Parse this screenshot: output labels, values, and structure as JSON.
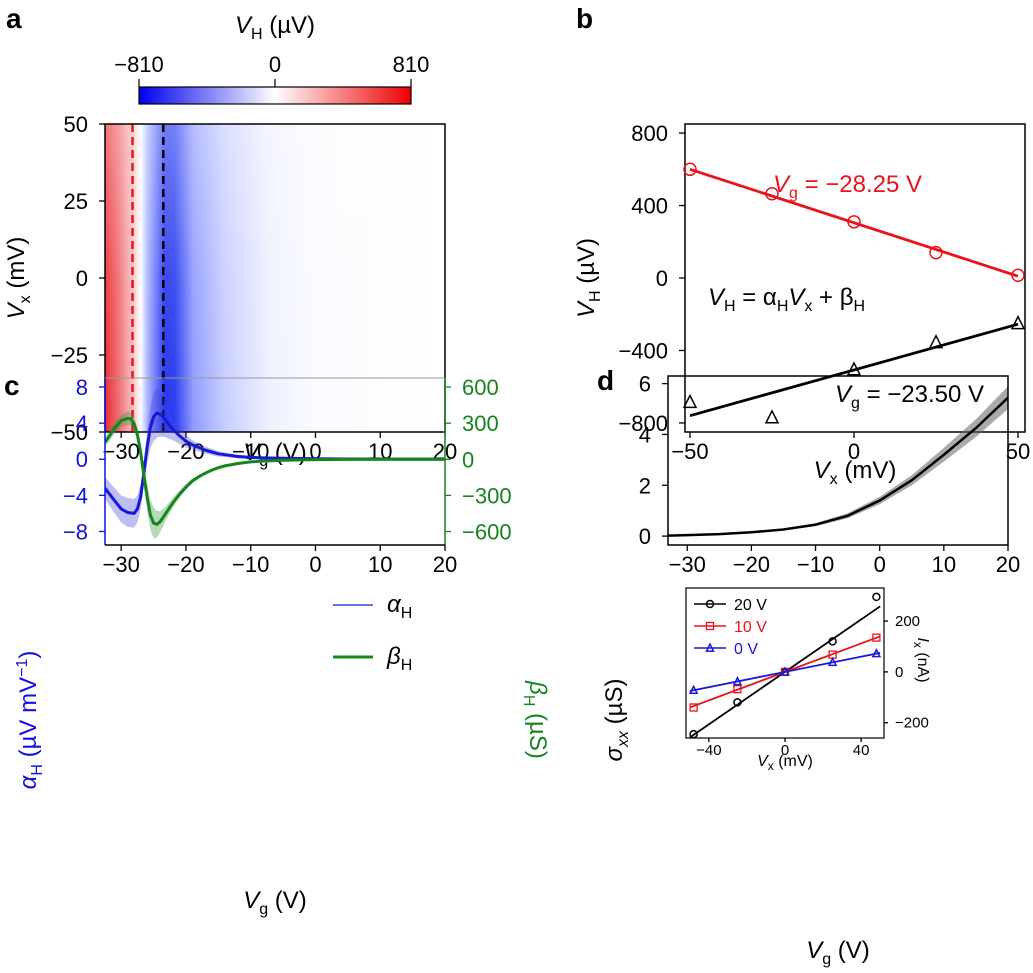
{
  "panel_letters": {
    "a": "a",
    "b": "b",
    "c": "c",
    "d": "d"
  },
  "chart_data": [
    {
      "id": "a",
      "type": "heatmap",
      "colorbar": {
        "label_sym": "V",
        "label_sub": "H",
        "label_unit": " (µV)",
        "ticks": [
          "−810",
          "0",
          "810"
        ],
        "range": [
          -810,
          810
        ],
        "colors": [
          "#0000ee",
          "#ffffff",
          "#ee0000"
        ]
      },
      "xlabel": {
        "sym": "V",
        "sub": "g",
        "unit": " (V)"
      },
      "ylabel": {
        "sym": "V",
        "sub": "x",
        "unit": " (mV)"
      },
      "xlim": [
        -32.5,
        20
      ],
      "ylim": [
        -50,
        50
      ],
      "xticks": [
        -30,
        -20,
        -10,
        0,
        10,
        20
      ],
      "xtick_labels": [
        "−30",
        "−20",
        "−10",
        "0",
        "10",
        "20"
      ],
      "yticks": [
        -50,
        -25,
        0,
        25,
        50
      ],
      "ytick_labels": [
        "−50",
        "−25",
        "0",
        "25",
        "50"
      ],
      "features": [
        {
          "name": "positive-region",
          "vg_from": -32.5,
          "vg_to": -26.5,
          "sign": "positive"
        },
        {
          "name": "negative-region",
          "vg_from": -26.5,
          "vg_to": -10,
          "sign": "negative"
        }
      ],
      "markers": [
        {
          "vg": -28.25,
          "color": "#e8141b",
          "style": "dashed"
        },
        {
          "vg": -23.5,
          "color": "#000000",
          "style": "dashed"
        }
      ]
    },
    {
      "id": "b",
      "type": "scatter",
      "xlabel": {
        "sym": "V",
        "sub": "x",
        "unit": " (mV)"
      },
      "ylabel": {
        "sym": "V",
        "sub": "H",
        "unit": " (µV)"
      },
      "xlim": [
        -50,
        50
      ],
      "ylim": [
        -850,
        850
      ],
      "xticks": [
        -50,
        0,
        50
      ],
      "xtick_labels": [
        "−50",
        "0",
        "50"
      ],
      "yticks": [
        -800,
        -400,
        0,
        400,
        800
      ],
      "ytick_labels": [
        "−800",
        "−400",
        "0",
        "400",
        "800"
      ],
      "series": [
        {
          "name": "Vg = −28.25 V",
          "color": "#e8141b",
          "marker": "circle",
          "x": [
            -50,
            -25,
            0,
            25,
            50
          ],
          "y": [
            600,
            465,
            310,
            140,
            15
          ],
          "fit": [
            [
              -50,
              600
            ],
            [
              50,
              10
            ]
          ]
        },
        {
          "name": "Vg = −23.50 V",
          "color": "#000000",
          "marker": "triangle",
          "x": [
            -50,
            -25,
            0,
            25,
            50
          ],
          "y": [
            -685,
            -770,
            -505,
            -355,
            -250
          ],
          "fit": [
            [
              -50,
              -760
            ],
            [
              50,
              -255
            ]
          ]
        }
      ],
      "annotations": {
        "red_label": {
          "sym": "V",
          "sub": "g",
          "rest": " = −28.25 V"
        },
        "black_label": {
          "sym": "V",
          "sub": "g",
          "rest": " = −23.50 V"
        },
        "equation": {
          "a": "V",
          "a_sub": "H",
          "b": " = α",
          "b_sub": "H",
          "c": "V",
          "c_sub": "x",
          "d": " + β",
          "d_sub": "H"
        }
      }
    },
    {
      "id": "c",
      "type": "line",
      "xlabel": {
        "sym": "V",
        "sub": "g",
        "unit": " (V)"
      },
      "ylabel_left": {
        "sym": "α",
        "sub": "H",
        "unit": " (µV mV",
        "sup": "−1",
        "close": ")"
      },
      "ylabel_right": {
        "sym": "β",
        "sub": "H",
        "unit": " (µS)"
      },
      "xlim": [
        -32.5,
        20
      ],
      "ylim_left": [
        -9.5,
        9
      ],
      "ylim_right": [
        -712,
        675
      ],
      "xticks": [
        -30,
        -20,
        -10,
        0,
        10,
        20
      ],
      "xtick_labels": [
        "−30",
        "−20",
        "−10",
        "0",
        "10",
        "20"
      ],
      "yticks_left": [
        -8,
        -4,
        0,
        4,
        8
      ],
      "ytick_labels_left": [
        "−8",
        "−4",
        "0",
        "4",
        "8"
      ],
      "yticks_right": [
        -600,
        -300,
        0,
        300,
        600
      ],
      "ytick_labels_right": [
        "−600",
        "−300",
        "0",
        "300",
        "600"
      ],
      "left_color": "#1010e0",
      "right_color": "#17851f",
      "legend": [
        {
          "sym": "α",
          "sub": "H"
        },
        {
          "sym": "β",
          "sub": "H"
        }
      ],
      "series": [
        {
          "name": "αH",
          "axis": "left",
          "color": "#1818d8",
          "x": [
            -32.5,
            -31,
            -30,
            -29,
            -28,
            -27.5,
            -27,
            -26.5,
            -26,
            -25.5,
            -25,
            -24.5,
            -24,
            -23.5,
            -23,
            -22,
            -21,
            -20,
            -19,
            -18,
            -17,
            -16,
            -15,
            -14,
            -12,
            -10,
            -8,
            -5,
            0,
            5,
            10,
            20
          ],
          "y": [
            -3.2,
            -4.6,
            -5.5,
            -5.9,
            -6.0,
            -5.5,
            -4.2,
            -1.5,
            1.3,
            3.5,
            4.7,
            5.1,
            5.0,
            4.7,
            4.2,
            3.3,
            2.6,
            2.0,
            1.6,
            1.3,
            1.0,
            0.8,
            0.6,
            0.5,
            0.3,
            0.2,
            0.15,
            0.1,
            0.05,
            0.03,
            0.02,
            0.02
          ],
          "band": [
            1.2,
            1.4,
            1.5,
            1.6,
            1.6,
            1.5,
            1.4,
            1.3,
            1.8,
            2.3,
            2.7,
            2.7,
            2.5,
            2.2,
            1.8,
            1.2,
            0.9,
            0.7,
            0.5,
            0.45,
            0.4,
            0.35,
            0.3,
            0.25,
            0.2,
            0.15,
            0.12,
            0.1,
            0.08,
            0.06,
            0.05,
            0.05
          ]
        },
        {
          "name": "βH",
          "axis": "right",
          "color": "#17851f",
          "x": [
            -32.5,
            -31,
            -30,
            -29,
            -28.5,
            -28,
            -27.5,
            -27,
            -26.5,
            -26,
            -25.5,
            -25,
            -24.5,
            -24,
            -23.5,
            -23,
            -22,
            -21,
            -20,
            -19,
            -18,
            -17,
            -16,
            -15,
            -14,
            -12,
            -10,
            -8,
            -5,
            0,
            5,
            10,
            20
          ],
          "y": [
            140,
            260,
            320,
            340,
            335,
            295,
            205,
            60,
            -135,
            -310,
            -460,
            -530,
            -540,
            -520,
            -480,
            -440,
            -360,
            -290,
            -230,
            -180,
            -145,
            -115,
            -90,
            -70,
            -55,
            -35,
            -22,
            -14,
            -8,
            -3,
            -1,
            0,
            0
          ],
          "band": [
            40,
            45,
            50,
            55,
            55,
            55,
            60,
            70,
            90,
            110,
            120,
            130,
            110,
            90,
            70,
            55,
            40,
            30,
            25,
            20,
            15,
            12,
            10,
            8,
            6,
            5,
            4,
            3,
            2,
            2,
            1,
            1,
            1
          ]
        }
      ]
    },
    {
      "id": "d",
      "type": "line",
      "xlabel": {
        "sym": "V",
        "sub": "g",
        "unit": " (V)"
      },
      "ylabel": {
        "sym": "σ",
        "sub": "xx",
        "unit": " (µS)"
      },
      "xlim": [
        -33,
        20
      ],
      "ylim": [
        -0.35,
        6.3
      ],
      "xticks": [
        -30,
        -20,
        -10,
        0,
        10,
        20
      ],
      "xtick_labels": [
        "−30",
        "−20",
        "−10",
        "0",
        "10",
        "20"
      ],
      "yticks": [
        0,
        2,
        4,
        6
      ],
      "ytick_labels": [
        "0",
        "2",
        "4",
        "6"
      ],
      "series": [
        {
          "name": "sigma_xx",
          "color": "#000000",
          "x": [
            -33,
            -30,
            -25,
            -20,
            -15,
            -10,
            -5,
            0,
            5,
            10,
            15,
            20
          ],
          "y": [
            0.02,
            0.04,
            0.08,
            0.15,
            0.26,
            0.45,
            0.8,
            1.4,
            2.2,
            3.2,
            4.25,
            5.45
          ],
          "band": [
            0.02,
            0.02,
            0.03,
            0.03,
            0.04,
            0.06,
            0.1,
            0.15,
            0.2,
            0.27,
            0.35,
            0.45
          ]
        }
      ],
      "inset": {
        "xlabel": {
          "sym": "V",
          "sub": "x",
          "unit": " (mV)"
        },
        "ylabel": {
          "sym": "I",
          "sub": "x",
          "unit": " (nA)"
        },
        "xlim": [
          -52,
          52
        ],
        "ylim": [
          -260,
          330
        ],
        "xticks": [
          -40,
          0,
          40
        ],
        "xtick_labels": [
          "−40",
          "0",
          "40"
        ],
        "yticks": [
          -200,
          0,
          200
        ],
        "ytick_labels": [
          "−200",
          "0",
          "200"
        ],
        "series": [
          {
            "name": "20 V",
            "color": "#000000",
            "marker": "circle",
            "x": [
              -48,
              -25,
              0,
              25,
              48
            ],
            "y": [
              -245,
              -120,
              0,
              120,
              295
            ],
            "fit": [
              [
                -50,
                -258
              ],
              [
                50,
                258
              ]
            ]
          },
          {
            "name": "10 V",
            "color": "#e8141b",
            "marker": "square",
            "x": [
              -48,
              -25,
              0,
              25,
              48
            ],
            "y": [
              -140,
              -68,
              0,
              68,
              135
            ],
            "fit": [
              [
                -50,
                -140
              ],
              [
                50,
                140
              ]
            ]
          },
          {
            "name": "0 V",
            "color": "#1818d8",
            "marker": "triangle",
            "x": [
              -48,
              -25,
              0,
              25,
              48
            ],
            "y": [
              -72,
              -38,
              0,
              38,
              72
            ],
            "fit": [
              [
                -50,
                -75
              ],
              [
                50,
                75
              ]
            ]
          }
        ]
      }
    }
  ]
}
